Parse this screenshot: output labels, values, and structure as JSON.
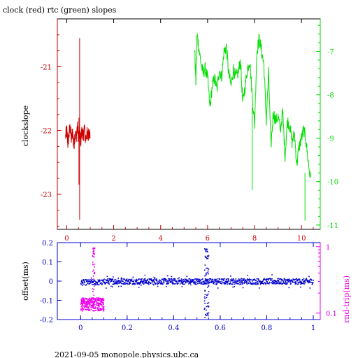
{
  "title": "clock (red) rtc (green) slopes",
  "footer": "2021-09-05  monopole.physics.ubc.ca",
  "colors": {
    "red": "#cc0000",
    "green": "#00dd00",
    "blue": "#0000cc",
    "magenta": "#ee00ee",
    "black": "#000000"
  },
  "chart_data": [
    {
      "type": "line",
      "title": "clock (red) rtc (green) slopes",
      "ylabel": "clockslope",
      "xlim": [
        -0.4,
        10.8
      ],
      "ylim_left": [
        -23.55,
        -20.25
      ],
      "ylim_right": [
        -11.1,
        -6.25
      ],
      "x_ticks": [
        "0",
        "2",
        "4",
        "6",
        "8",
        "10"
      ],
      "y_left_ticks": [
        "-21",
        "-22",
        "-23"
      ],
      "y_right_ticks": [
        "-7",
        "-8",
        "-9",
        "-10",
        "-11"
      ],
      "series": [
        {
          "color": "red",
          "axis": "left",
          "x": [
            -0.05,
            0,
            0.05,
            0.1,
            0.15,
            0.2,
            0.25,
            0.3,
            0.35,
            0.4,
            0.45,
            0.5,
            0.55,
            0.6,
            0.65,
            0.7,
            0.75,
            0.8,
            0.85,
            0.9,
            0.95,
            1.0
          ],
          "y": [
            -22.1,
            -22.0,
            -22.2,
            -22.05,
            -21.95,
            -22.15,
            -22.0,
            -22.25,
            -22.05,
            -22.1,
            -21.95,
            -22.1,
            -22.05,
            -22.15,
            -22.0,
            -22.1,
            -21.95,
            -22.15,
            -22.05,
            -22.1,
            -22.0,
            -22.1
          ]
        },
        {
          "color": "green",
          "axis": "right",
          "x": [
            5.45,
            5.5,
            5.55,
            5.6,
            5.7,
            5.8,
            5.9,
            6.0,
            6.1,
            6.2,
            6.3,
            6.4,
            6.5,
            6.6,
            6.7,
            6.8,
            6.9,
            7.0,
            7.1,
            7.2,
            7.3,
            7.4,
            7.5,
            7.6,
            7.7,
            7.8,
            7.9,
            8.0,
            8.1,
            8.2,
            8.3,
            8.4,
            8.5,
            8.6,
            8.7,
            8.8,
            8.9,
            9.0,
            9.1,
            9.2,
            9.3,
            9.4,
            9.5,
            9.6,
            9.7,
            9.8,
            9.9,
            10.0,
            10.1,
            10.2,
            10.3,
            10.4
          ],
          "y": [
            -6.9,
            -7.7,
            -6.6,
            -6.8,
            -7.2,
            -7.5,
            -7.4,
            -7.6,
            -8.3,
            -7.8,
            -7.6,
            -7.9,
            -7.4,
            -7.6,
            -7.0,
            -6.9,
            -7.5,
            -7.8,
            -7.4,
            -7.6,
            -7.5,
            -7.2,
            -8.2,
            -7.8,
            -7.4,
            -7.2,
            -8.0,
            -8.7,
            -7.0,
            -6.7,
            -7.0,
            -7.3,
            -8.6,
            -7.5,
            -9.2,
            -8.4,
            -8.6,
            -8.5,
            -8.8,
            -8.4,
            -9.4,
            -8.6,
            -8.7,
            -9.1,
            -8.9,
            -9.6,
            -9.2,
            -9.0,
            -8.8,
            -9.1,
            -9.6,
            -10.0
          ]
        }
      ]
    },
    {
      "type": "scatter",
      "ylabel_left": "offset(ms)",
      "ylabel_right": "rnd-trip(ms)",
      "xlim": [
        -0.1,
        1.03
      ],
      "ylim_left": [
        -0.2,
        0.2
      ],
      "right_scale": "log",
      "ylim_right": [
        0.08,
        1.15
      ],
      "x_ticks": [
        "0",
        "0.2",
        "0.4",
        "0.6",
        "0.8",
        "1"
      ],
      "y_left_ticks": [
        "0.2",
        "0.1",
        "0",
        "-0.1",
        "-0.2"
      ],
      "y_right_ticks": [
        "1",
        "0.1"
      ],
      "series": [
        {
          "color": "blue",
          "axis": "left",
          "x_range": [
            0,
            1.0
          ],
          "center": 0.0,
          "spread": 0.015
        },
        {
          "color": "magenta",
          "axis": "right",
          "x_range": [
            0,
            0.1
          ],
          "center": 0.14,
          "spread": 0.025
        }
      ]
    }
  ]
}
